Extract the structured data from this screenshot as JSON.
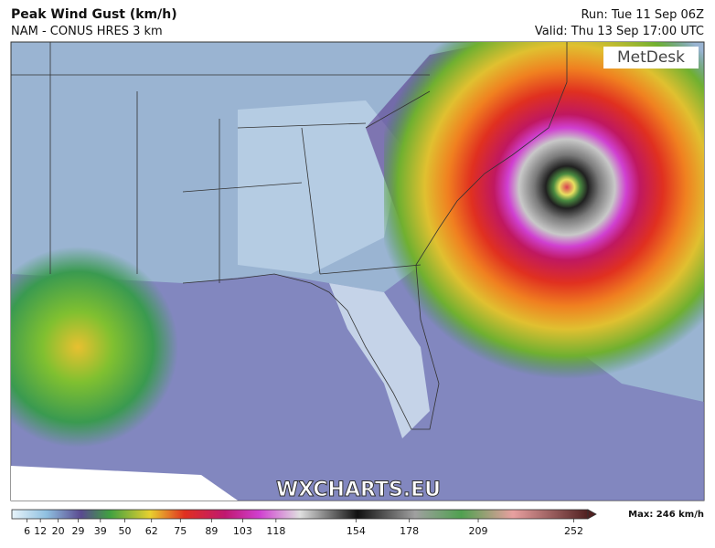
{
  "header": {
    "title": "Peak Wind Gust (km/h)",
    "model": "NAM - CONUS HRES 3 km",
    "run": "Run: Tue 11 Sep 06Z",
    "valid": "Valid: Thu 13 Sep 17:00 UTC"
  },
  "logo": "MetDesk",
  "watermark": "WXCHARTS.EU",
  "colorbar": {
    "lim": [
      0,
      260
    ],
    "ticks": [
      6,
      12,
      20,
      29,
      39,
      50,
      62,
      75,
      89,
      103,
      118,
      154,
      178,
      209,
      252
    ],
    "max_label": "Max: 246 km/h"
  }
}
